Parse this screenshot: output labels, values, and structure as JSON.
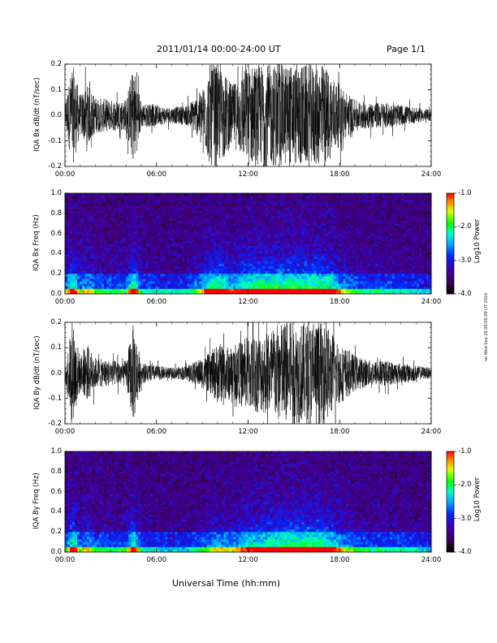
{
  "header": {
    "title": "2011/01/14  00:00-24:00 UT",
    "page": "Page 1/1"
  },
  "xaxis": {
    "title": "Universal Time (hh:mm)",
    "ticks": [
      "00:00",
      "06:00",
      "12:00",
      "18:00",
      "24:00"
    ]
  },
  "side_note": "rai Wed Sep 28 09:06:09 UT 2016",
  "colorbar": {
    "label": "Log10 Power",
    "ticks": [
      "-1.0",
      "-2.0",
      "-3.0",
      "-4.0"
    ],
    "colors": [
      "#ff0000",
      "#ff8800",
      "#ffff00",
      "#00ff00",
      "#00ffff",
      "#0088ff",
      "#0000ff",
      "#6600cc",
      "#000000"
    ]
  },
  "chart_data": [
    {
      "type": "line",
      "ylabel": "IQA Bx dB/dt (nT/sec)",
      "xlim": [
        0,
        24
      ],
      "ylim": [
        -0.2,
        0.2
      ],
      "yticks": [
        "0.2",
        "0.1",
        "0.0",
        "-0.1",
        "-0.2"
      ],
      "xticks": [
        "00:00",
        "06:00",
        "12:00",
        "18:00",
        "24:00"
      ],
      "envelope_hours": [
        0,
        0.5,
        1,
        1.5,
        2,
        3,
        4,
        4.5,
        5,
        6,
        7,
        8,
        9,
        9.5,
        10,
        11,
        12,
        13,
        14,
        15,
        16,
        17,
        18,
        19,
        20,
        21,
        22,
        23,
        24
      ],
      "envelope_amplitude": [
        0.05,
        0.2,
        0.08,
        0.12,
        0.07,
        0.06,
        0.06,
        0.2,
        0.05,
        0.04,
        0.03,
        0.04,
        0.1,
        0.2,
        0.2,
        0.12,
        0.2,
        0.2,
        0.2,
        0.2,
        0.2,
        0.2,
        0.12,
        0.06,
        0.05,
        0.05,
        0.04,
        0.03,
        0.02
      ]
    },
    {
      "type": "heatmap",
      "ylabel": "IQA Bx Freq (Hz)",
      "xlim": [
        0,
        24
      ],
      "ylim": [
        0,
        1.0
      ],
      "yticks": [
        "1.0",
        "0.8",
        "0.6",
        "0.4",
        "0.2",
        "0.0"
      ],
      "xticks": [
        "00:00",
        "06:00",
        "12:00",
        "18:00",
        "24:00"
      ],
      "zlim": [
        -4.0,
        -1.0
      ],
      "zlabel": "Log10 Power"
    },
    {
      "type": "line",
      "ylabel": "IQA By dB/dt (nT/sec)",
      "xlim": [
        0,
        24
      ],
      "ylim": [
        -0.2,
        0.2
      ],
      "yticks": [
        "0.2",
        "0.1",
        "0.0",
        "-0.1",
        "-0.2"
      ],
      "xticks": [
        "00:00",
        "06:00",
        "12:00",
        "18:00",
        "24:00"
      ],
      "envelope_hours": [
        0,
        0.5,
        1,
        1.5,
        2,
        3,
        4,
        4.5,
        5,
        6,
        7,
        8,
        9,
        9.5,
        10,
        11,
        12,
        13,
        14,
        15,
        16,
        17,
        18,
        19,
        20,
        21,
        22,
        23,
        24
      ],
      "envelope_amplitude": [
        0.04,
        0.2,
        0.07,
        0.11,
        0.06,
        0.05,
        0.05,
        0.2,
        0.04,
        0.03,
        0.02,
        0.03,
        0.06,
        0.08,
        0.12,
        0.1,
        0.15,
        0.16,
        0.2,
        0.2,
        0.2,
        0.2,
        0.12,
        0.07,
        0.05,
        0.05,
        0.04,
        0.03,
        0.02
      ]
    },
    {
      "type": "heatmap",
      "ylabel": "IQA By Freq (Hz)",
      "xlim": [
        0,
        24
      ],
      "ylim": [
        0,
        1.0
      ],
      "yticks": [
        "1.0",
        "0.8",
        "0.6",
        "0.4",
        "0.2",
        "0.0"
      ],
      "xticks": [
        "00:00",
        "06:00",
        "12:00",
        "18:00",
        "24:00"
      ],
      "zlim": [
        -4.0,
        -1.0
      ],
      "zlabel": "Log10 Power"
    }
  ]
}
